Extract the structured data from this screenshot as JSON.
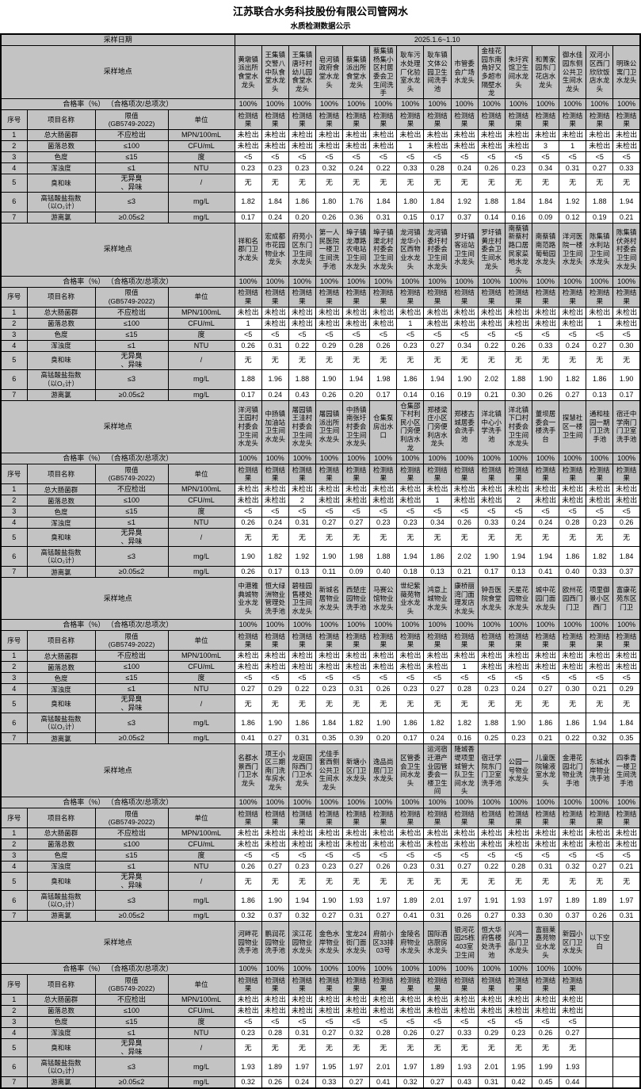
{
  "page": {
    "title": "江苏联合水务科技股份有限公司管网水",
    "subtitle": "水质检测数据公示",
    "date_label": "采样日期",
    "date_value": "2025.1.6~1.10",
    "location_label": "采样地点",
    "rate_label": "合格率（%） （合格项次/总项次）",
    "col_headers": {
      "seq": "序号",
      "item": "项目名称",
      "limit": "限值\n(GB5749-2022)",
      "unit": "单位",
      "result": "检测结果"
    }
  },
  "parameters": [
    {
      "seq": "1",
      "name": "总大肠菌群",
      "limit": "不应检出",
      "unit": "MPN/100mL"
    },
    {
      "seq": "2",
      "name": "菌落总数",
      "limit": "≤100",
      "unit": "CFU/mL"
    },
    {
      "seq": "3",
      "name": "色度",
      "limit": "≤15",
      "unit": "度"
    },
    {
      "seq": "4",
      "name": "浑浊度",
      "limit": "≤1",
      "unit": "NTU"
    },
    {
      "seq": "5",
      "name": "臭和味",
      "limit": "无异臭\n、异味",
      "unit": "/"
    },
    {
      "seq": "6",
      "name": "高锰酸盐指数\n（以O₂计）",
      "limit": "≤3",
      "unit": "mg/L"
    },
    {
      "seq": "7",
      "name": "游离氯",
      "limit": "≥0.05≤2",
      "unit": "mg/L"
    }
  ],
  "sections": [
    {
      "locations": [
        "黄墩镇派出所食堂水龙头",
        "王集镇交警八中队食堂水龙头",
        "王集镇唐圩村幼儿园食堂水龙头",
        "皂河镇政府食堂水龙头",
        "蔡集镇派出所食堂水龙头",
        "蔡集镇杨集小区村居委会卫生间洗手",
        "耿车污水处理厂化验室水龙头",
        "耿车镇文体公园卫生间洗手池",
        "市管委会广场水龙头",
        "金桂花园东南角好又多超市隔壁水龙",
        "朱圩宾馆卫生间水龙头",
        "和菁家园东门花店水龙头",
        "御水佳园东侧公共卫生间水龙头",
        "双河小区西门欣欣饭店水龙头",
        "明珠公寓门卫水龙头"
      ],
      "rates": [
        "100%",
        "100%",
        "100%",
        "100%",
        "100%",
        "100%",
        "100%",
        "100%",
        "100%",
        "100%",
        "100%",
        "100%",
        "100%",
        "100%",
        "100%"
      ],
      "results": [
        [
          "未检出",
          "未检出",
          "未检出",
          "未检出",
          "未检出",
          "未检出",
          "未检出",
          "未检出",
          "未检出",
          "未检出",
          "未检出",
          "未检出",
          "未检出",
          "未检出",
          "未检出"
        ],
        [
          "未检出",
          "未检出",
          "未检出",
          "未检出",
          "未检出",
          "未检出",
          "1",
          "未检出",
          "未检出",
          "未检出",
          "未检出",
          "3",
          "1",
          "未检出",
          "未检出"
        ],
        [
          "<5",
          "<5",
          "<5",
          "<5",
          "<5",
          "<5",
          "<5",
          "<5",
          "<5",
          "<5",
          "<5",
          "<5",
          "<5",
          "<5",
          "<5"
        ],
        [
          "0.23",
          "0.23",
          "0.23",
          "0.32",
          "0.24",
          "0.22",
          "0.33",
          "0.28",
          "0.24",
          "0.26",
          "0.23",
          "0.34",
          "0.31",
          "0.27",
          "0.33"
        ],
        [
          "无",
          "无",
          "无",
          "无",
          "无",
          "无",
          "无",
          "无",
          "无",
          "无",
          "无",
          "无",
          "无",
          "无",
          "无"
        ],
        [
          "1.82",
          "1.84",
          "1.86",
          "1.80",
          "1.76",
          "1.84",
          "1.80",
          "1.84",
          "1.92",
          "1.88",
          "1.84",
          "1.84",
          "1.92",
          "1.88",
          "1.94"
        ],
        [
          "0.17",
          "0.24",
          "0.20",
          "0.26",
          "0.36",
          "0.31",
          "0.15",
          "0.17",
          "0.37",
          "0.14",
          "0.16",
          "0.09",
          "0.12",
          "0.19",
          "0.21"
        ]
      ]
    },
    {
      "locations": [
        "祥和名郡门卫水龙头",
        "宏成都市花园物业水龙头",
        "府苑小区东门卫生间水龙头",
        "第一人民医院一楼卫生间洗手池",
        "埠子镇龙潭路农电站卫生间水龙头",
        "埠子镇渠北村村委会卫生间水龙头",
        "龙河镇龙华小区西物业水龙头",
        "龙河镇委圩村村委会卫生间水龙头",
        "罗圩镇客运站卫生间水龙头",
        "罗圩镇黄庄村委会卫生间水龙头",
        "南蔡镇新蔡村路口居民家菜地水龙头",
        "南蔡镇南范路葡萄园水龙头",
        "洋河医院一楼卫生间水龙头",
        "陈集镇水利站卫生间水龙头",
        "陈集镇伏尧村村委会卫生间水龙头"
      ],
      "rates": [
        "100%",
        "100%",
        "100%",
        "100%",
        "100%",
        "100%",
        "100%",
        "100%",
        "100%",
        "100%",
        "100%",
        "100%",
        "100%",
        "100%",
        "100%"
      ],
      "results": [
        [
          "未检出",
          "未检出",
          "未检出",
          "未检出",
          "未检出",
          "未检出",
          "未检出",
          "未检出",
          "未检出",
          "未检出",
          "未检出",
          "未检出",
          "未检出",
          "未检出",
          "未检出"
        ],
        [
          "1",
          "未检出",
          "未检出",
          "未检出",
          "未检出",
          "未检出",
          "1",
          "未检出",
          "未检出",
          "未检出",
          "未检出",
          "未检出",
          "未检出",
          "1",
          "未检出"
        ],
        [
          "<5",
          "<5",
          "<5",
          "<5",
          "<5",
          "<5",
          "<5",
          "<5",
          "<5",
          "<5",
          "<5",
          "<5",
          "<5",
          "<5",
          "<5"
        ],
        [
          "0.26",
          "0.31",
          "0.22",
          "0.29",
          "0.28",
          "0.26",
          "0.23",
          "0.27",
          "0.34",
          "0.22",
          "0.26",
          "0.33",
          "0.24",
          "0.27",
          "0.30"
        ],
        [
          "无",
          "无",
          "无",
          "无",
          "无",
          "无",
          "无",
          "无",
          "无",
          "无",
          "无",
          "无",
          "无",
          "无",
          "无"
        ],
        [
          "1.88",
          "1.96",
          "1.88",
          "1.90",
          "1.94",
          "1.98",
          "1.86",
          "1.94",
          "1.90",
          "2.02",
          "1.88",
          "1.90",
          "1.82",
          "1.86",
          "1.90"
        ],
        [
          "0.17",
          "0.24",
          "0.43",
          "0.26",
          "0.20",
          "0.17",
          "0.14",
          "0.16",
          "0.19",
          "0.21",
          "0.30",
          "0.26",
          "0.27",
          "0.13",
          "0.17"
        ]
      ]
    },
    {
      "locations": [
        "洋河镇王园村村委会卫生间水龙头",
        "中扬镇加油站卫生间水龙头",
        "屠园镇王洼村村委会卫生间水龙头",
        "屠园镇派出所卫生间水龙头",
        "中扬镇南张圩村委会卫生间水龙头",
        "仓集泵房出水口",
        "仓集邵下村利民小区门旁便利店水龙",
        "郑楼梁庄小区门旁便利店水龙头",
        "郑楼古城居委会洗手池",
        "洋北镇中心小学洗手池",
        "洋北镇下口村村委会卫生间水龙头",
        "董坝居委会一楼洗手台",
        "探慧社区一楼卫生间",
        "通和桂园一期门卫洗手池",
        "宿迁中学南门门卫室洗手池"
      ],
      "rates": [
        "100%",
        "100%",
        "100%",
        "100%",
        "100%",
        "100%",
        "100%",
        "100%",
        "100%",
        "100%",
        "100%",
        "100%",
        "100%",
        "100%",
        "100%"
      ],
      "results": [
        [
          "未检出",
          "未检出",
          "未检出",
          "未检出",
          "未检出",
          "未检出",
          "未检出",
          "未检出",
          "未检出",
          "未检出",
          "未检出",
          "未检出",
          "未检出",
          "未检出",
          "未检出"
        ],
        [
          "未检出",
          "未检出",
          "2",
          "未检出",
          "未检出",
          "未检出",
          "未检出",
          "1",
          "未检出",
          "未检出",
          "2",
          "未检出",
          "未检出",
          "未检出",
          "未检出"
        ],
        [
          "<5",
          "<5",
          "<5",
          "<5",
          "<5",
          "<5",
          "<5",
          "<5",
          "<5",
          "<5",
          "<5",
          "<5",
          "<5",
          "<5",
          "<5"
        ],
        [
          "0.26",
          "0.24",
          "0.31",
          "0.27",
          "0.27",
          "0.23",
          "0.23",
          "0.34",
          "0.26",
          "0.33",
          "0.24",
          "0.24",
          "0.28",
          "0.23",
          "0.26"
        ],
        [
          "无",
          "无",
          "无",
          "无",
          "无",
          "无",
          "无",
          "无",
          "无",
          "无",
          "无",
          "无",
          "无",
          "无",
          "无"
        ],
        [
          "1.90",
          "1.82",
          "1.92",
          "1.90",
          "1.98",
          "1.88",
          "1.94",
          "1.86",
          "2.02",
          "1.90",
          "1.94",
          "1.94",
          "1.86",
          "1.82",
          "1.84"
        ],
        [
          "0.26",
          "0.17",
          "0.13",
          "0.11",
          "0.09",
          "0.40",
          "0.18",
          "0.13",
          "0.21",
          "0.17",
          "0.13",
          "0.41",
          "0.40",
          "0.33",
          "0.37"
        ]
      ]
    },
    {
      "locations": [
        "中港雅典城物业水龙头",
        "恒大绿洲物业管理处洗手池",
        "碧桂园售楼处卫生间水龙头",
        "新城名居物业水龙头",
        "西楚庄园物业洗手池",
        "马赛公馆物业水龙头",
        "世纪紫薇苑物业水龙头",
        "鸿意上城物业水龙头",
        "康桥丽湾门面理发店水龙头",
        "钟吾医院食堂水龙头",
        "天星花园物业水龙头",
        "城中花园门面水龙头",
        "欧州花园西门门卫",
        "项里御景小区西门",
        "富康花苑东区门卫"
      ],
      "rates": [
        "100%",
        "100%",
        "100%",
        "100%",
        "100%",
        "100%",
        "100%",
        "100%",
        "100%",
        "100%",
        "100%",
        "100%",
        "100%",
        "100%",
        "100%"
      ],
      "results": [
        [
          "未检出",
          "未检出",
          "未检出",
          "未检出",
          "未检出",
          "未检出",
          "未检出",
          "未检出",
          "未检出",
          "未检出",
          "未检出",
          "未检出",
          "未检出",
          "未检出",
          "未检出"
        ],
        [
          "未检出",
          "未检出",
          "未检出",
          "未检出",
          "未检出",
          "未检出",
          "未检出",
          "未检出",
          "1",
          "未检出",
          "未检出",
          "未检出",
          "未检出",
          "未检出",
          "未检出"
        ],
        [
          "<5",
          "<5",
          "<5",
          "<5",
          "<5",
          "<5",
          "<5",
          "<5",
          "<5",
          "<5",
          "<5",
          "<5",
          "<5",
          "<5",
          "<5"
        ],
        [
          "0.27",
          "0.29",
          "0.22",
          "0.23",
          "0.31",
          "0.26",
          "0.23",
          "0.27",
          "0.28",
          "0.23",
          "0.24",
          "0.27",
          "0.30",
          "0.21",
          "0.29"
        ],
        [
          "无",
          "无",
          "无",
          "无",
          "无",
          "无",
          "无",
          "无",
          "无",
          "无",
          "无",
          "无",
          "无",
          "无",
          "无"
        ],
        [
          "1.86",
          "1.90",
          "1.86",
          "1.84",
          "1.82",
          "1.90",
          "1.86",
          "1.82",
          "1.82",
          "1.88",
          "1.90",
          "1.86",
          "1.86",
          "1.94",
          "1.84"
        ],
        [
          "0.41",
          "0.27",
          "0.31",
          "0.35",
          "0.39",
          "0.20",
          "0.17",
          "0.24",
          "0.16",
          "0.25",
          "0.23",
          "0.21",
          "0.22",
          "0.32",
          "0.35"
        ]
      ]
    },
    {
      "locations": [
        "名都水景西门门卫水龙头",
        "项王小区三期南门洗车房水龙头",
        "龙庭国际西门门卫水龙头",
        "尤佳手套西侧公共卫生间水龙头",
        "新塘小区门卫水龙头",
        "逸品尚居门卫水龙头",
        "区管委会卫生间水龙头",
        "运河宿迁港产业园管委会一楼卫生间",
        "隆城香堤项里城管大队卫生间水龙头",
        "宿迁学院东门门卫室洗手池",
        "公园一号物业水龙头",
        "儿童医院输液室水龙头",
        "金港花园北门物业洗手池",
        "东城水岸物业洗手池",
        "四季青一楼卫生间洗手池"
      ],
      "rates": [
        "100%",
        "100%",
        "100%",
        "100%",
        "100%",
        "100%",
        "100%",
        "100%",
        "100%",
        "100%",
        "100%",
        "100%",
        "100%",
        "100%",
        "100%"
      ],
      "results": [
        [
          "未检出",
          "未检出",
          "未检出",
          "未检出",
          "未检出",
          "未检出",
          "未检出",
          "未检出",
          "未检出",
          "未检出",
          "未检出",
          "未检出",
          "未检出",
          "未检出",
          "未检出"
        ],
        [
          "未检出",
          "未检出",
          "未检出",
          "未检出",
          "未检出",
          "未检出",
          "未检出",
          "未检出",
          "未检出",
          "未检出",
          "未检出",
          "未检出",
          "未检出",
          "未检出",
          "未检出"
        ],
        [
          "<5",
          "<5",
          "<5",
          "<5",
          "<5",
          "<5",
          "<5",
          "<5",
          "<5",
          "<5",
          "<5",
          "<5",
          "<5",
          "<5",
          "<5"
        ],
        [
          "0.26",
          "0.27",
          "0.23",
          "0.23",
          "0.27",
          "0.26",
          "0.23",
          "0.31",
          "0.27",
          "0.22",
          "0.28",
          "0.31",
          "0.32",
          "0.27",
          "0.21"
        ],
        [
          "无",
          "无",
          "无",
          "无",
          "无",
          "无",
          "无",
          "无",
          "无",
          "无",
          "无",
          "无",
          "无",
          "无",
          "无"
        ],
        [
          "1.86",
          "1.90",
          "1.94",
          "1.90",
          "1.93",
          "1.97",
          "1.89",
          "2.01",
          "1.97",
          "1.91",
          "1.93",
          "1.97",
          "1.89",
          "1.89",
          "1.97"
        ],
        [
          "0.32",
          "0.37",
          "0.32",
          "0.27",
          "0.31",
          "0.27",
          "0.41",
          "0.31",
          "0.26",
          "0.27",
          "0.33",
          "0.30",
          "0.37",
          "0.26",
          "0.31"
        ]
      ]
    },
    {
      "locations": [
        "河畔花园物业洗手池",
        "鹏润花园物业洗手池",
        "滨江花园物业水龙头",
        "金色水岸物业水龙头",
        "宝龙24街门面水龙头",
        "府前小区33排03号",
        "金陵名府物业水龙头",
        "国际酒店厨房水龙头",
        "银河花园25栋403室卫生间",
        "恒大华府售楼处洗手池",
        "兴鸿一品门卫水龙头",
        "富丽莱嘉苑物业水龙头",
        "新园小区门卫水龙头",
        "以下空白",
        ""
      ],
      "rates": [
        "100%",
        "100%",
        "100%",
        "100%",
        "100%",
        "100%",
        "100%",
        "100%",
        "100%",
        "100%",
        "100%",
        "100%",
        "100%",
        "",
        ""
      ],
      "results": [
        [
          "未检出",
          "未检出",
          "未检出",
          "未检出",
          "未检出",
          "未检出",
          "未检出",
          "未检出",
          "未检出",
          "未检出",
          "未检出",
          "未检出",
          "未检出",
          "",
          ""
        ],
        [
          "未检出",
          "未检出",
          "未检出",
          "未检出",
          "未检出",
          "未检出",
          "未检出",
          "未检出",
          "未检出",
          "未检出",
          "未检出",
          "未检出",
          "未检出",
          "",
          ""
        ],
        [
          "<5",
          "<5",
          "<5",
          "<5",
          "<5",
          "<5",
          "<5",
          "<5",
          "<5",
          "<5",
          "<5",
          "<5",
          "<5",
          "",
          ""
        ],
        [
          "0.23",
          "0.28",
          "0.31",
          "0.27",
          "0.32",
          "0.28",
          "0.26",
          "0.27",
          "0.33",
          "0.29",
          "0.23",
          "0.26",
          "0.27",
          "",
          ""
        ],
        [
          "无",
          "无",
          "无",
          "无",
          "无",
          "无",
          "无",
          "无",
          "无",
          "无",
          "无",
          "无",
          "无",
          "",
          ""
        ],
        [
          "1.93",
          "1.89",
          "1.97",
          "1.95",
          "1.97",
          "2.01",
          "1.97",
          "1.89",
          "1.93",
          "2.01",
          "1.95",
          "1.99",
          "1.93",
          "",
          ""
        ],
        [
          "0.32",
          "0.26",
          "0.24",
          "0.33",
          "0.27",
          "0.41",
          "0.32",
          "0.27",
          "0.43",
          "0.31",
          "0.42",
          "0.45",
          "0.44",
          "",
          ""
        ]
      ]
    }
  ]
}
